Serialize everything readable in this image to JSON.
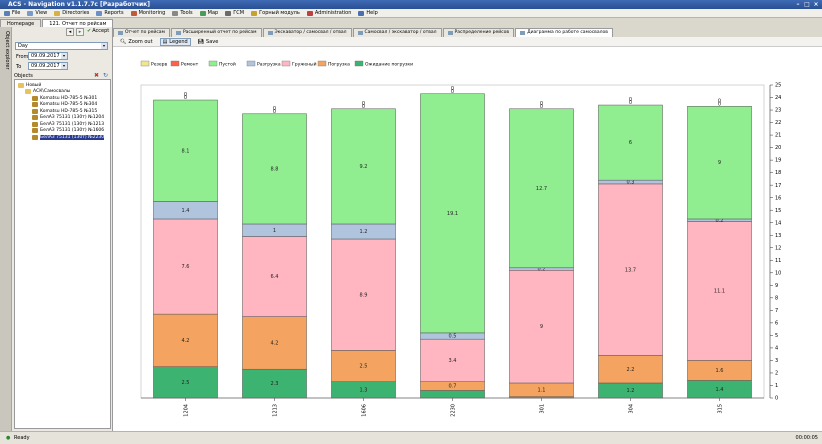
{
  "titlebar": {
    "title": "ACS - Navigation v1.1.7.7c [Разработчик]"
  },
  "menu": [
    {
      "label": "File",
      "icon": "file-icon",
      "color": "#5b7fb8"
    },
    {
      "label": "View",
      "icon": "view-icon",
      "color": "#7a9bc8"
    },
    {
      "label": "Directories",
      "icon": "folder-icon",
      "color": "#d8b04a"
    },
    {
      "label": "Reports",
      "icon": "report-icon",
      "color": "#6b8fc6"
    },
    {
      "label": "Monitoring",
      "icon": "monitoring-icon",
      "color": "#c05a3a"
    },
    {
      "label": "Tools",
      "icon": "tools-icon",
      "color": "#888888"
    },
    {
      "label": "Map",
      "icon": "map-icon",
      "color": "#4a9a5a"
    },
    {
      "label": "ГСМ",
      "icon": "fuel-icon",
      "color": "#6b6b6b"
    },
    {
      "label": "Горный модуль",
      "icon": "mining-icon",
      "color": "#c8a030"
    },
    {
      "label": "Administration",
      "icon": "admin-icon",
      "color": "#c04040"
    },
    {
      "label": "Help",
      "icon": "help-icon",
      "color": "#4a6fb0"
    }
  ],
  "tabs": [
    {
      "label": "Homepage",
      "active": false
    },
    {
      "label": "121. Отчет по рейсам",
      "active": true
    }
  ],
  "sidebar_strip": {
    "label": "Object explorer"
  },
  "left_panel": {
    "accept": "Accept",
    "period": "Day",
    "from_label": "From",
    "from_value": "09.09.2017",
    "to_label": "To",
    "to_value": "09.09.2017",
    "objects_label": "Objects",
    "tree": [
      {
        "label": "Новый",
        "level": 0,
        "selected": false
      },
      {
        "label": "АСК\\Самосвалы",
        "level": 1,
        "selected": false
      },
      {
        "label": "Komatsu HD-785-5 №301",
        "level": 2,
        "selected": false
      },
      {
        "label": "Komatsu HD-785-5 №304",
        "level": 2,
        "selected": false
      },
      {
        "label": "Komatsu HD-785-5 №315",
        "level": 2,
        "selected": false
      },
      {
        "label": "БелАЗ 75131 (130т) №1204",
        "level": 2,
        "selected": false
      },
      {
        "label": "БелАЗ 75131 (130т) №1213",
        "level": 2,
        "selected": false
      },
      {
        "label": "БелАЗ 75131 (130т) №1606",
        "level": 2,
        "selected": false
      },
      {
        "label": "БелАЗ 75131 (130т) №2230",
        "level": 2,
        "selected": true
      }
    ]
  },
  "doc_tabs": [
    {
      "label": "Отчет по рейсам",
      "active": false
    },
    {
      "label": "Расширенный отчет по рейсам",
      "active": false
    },
    {
      "label": "Экскаватор / самосвал / отвал",
      "active": false
    },
    {
      "label": "Самосвал / экскаватор / отвал",
      "active": false
    },
    {
      "label": "Распределение рейсов",
      "active": false
    },
    {
      "label": "Диаграмма по работе самосвалов",
      "active": true
    }
  ],
  "toolbar": {
    "zoom_out": "Zoom out",
    "legend": "Legend",
    "save": "Save"
  },
  "chart_data": {
    "type": "bar",
    "stacked": true,
    "categories": [
      "1204",
      "1213",
      "1606",
      "2230",
      "301",
      "304",
      "315"
    ],
    "ylim": [
      0,
      25
    ],
    "yticks": [
      0,
      1,
      2,
      3,
      4,
      5,
      6,
      7,
      8,
      9,
      10,
      11,
      12,
      13,
      14,
      15,
      16,
      17,
      18,
      19,
      20,
      21,
      22,
      23,
      24,
      25
    ],
    "legend_position": "top-left",
    "series": [
      {
        "name": "Ожидание погрузки",
        "color": "#3cb371",
        "values": [
          2.5,
          2.3,
          1.3,
          0.6,
          0.1,
          1.2,
          1.4
        ],
        "labels": [
          "2.5",
          "2.3",
          "1.3",
          "",
          "",
          "1.2",
          "1.4"
        ]
      },
      {
        "name": "Погрузка",
        "color": "#f4a460",
        "values": [
          4.2,
          4.2,
          2.5,
          0.7,
          1.1,
          2.2,
          1.6
        ],
        "labels": [
          "4.2",
          "4.2",
          "2.5",
          "0.7",
          "1.1",
          "2.2",
          "1.6"
        ]
      },
      {
        "name": "Груженый",
        "color": "#ffb6c1",
        "values": [
          7.6,
          6.4,
          8.9,
          3.4,
          9,
          13.7,
          11.1
        ],
        "labels": [
          "7.6",
          "6.4",
          "8.9",
          "3.4",
          "9",
          "13.7",
          "11.1"
        ]
      },
      {
        "name": "Разгрузка",
        "color": "#b0c4de",
        "values": [
          1.4,
          1,
          1.2,
          0.5,
          0.2,
          0.3,
          0.2
        ],
        "labels": [
          "1.4",
          "1",
          "1.2",
          "0.5",
          "0.2",
          "0.3",
          "0.2"
        ]
      },
      {
        "name": "Пустой",
        "color": "#90ee90",
        "values": [
          8.1,
          8.8,
          9.2,
          19.1,
          12.7,
          6,
          9
        ],
        "labels": [
          "8.1",
          "8.8",
          "9.2",
          "19.1",
          "12.7",
          "6",
          "9"
        ]
      },
      {
        "name": "Ремонт",
        "color": "#ff6347",
        "values": [
          0,
          0,
          0,
          0,
          0,
          0,
          0
        ],
        "labels": [
          "0",
          "0",
          "0",
          "0",
          "0",
          "0",
          "0"
        ]
      },
      {
        "name": "Резерв",
        "color": "#f0e68c",
        "values": [
          0,
          0,
          0,
          0,
          0,
          0,
          0
        ],
        "labels": [
          "0",
          "0",
          "0",
          "0",
          "0",
          "0",
          "0"
        ]
      }
    ],
    "legend_order": [
      "Резерв",
      "Ремонт",
      "Пустой",
      "Разгрузка",
      "Груженый",
      "Погрузка",
      "Ожидание погрузки"
    ]
  },
  "status": {
    "left": "Ready",
    "right": "00:00:05"
  }
}
